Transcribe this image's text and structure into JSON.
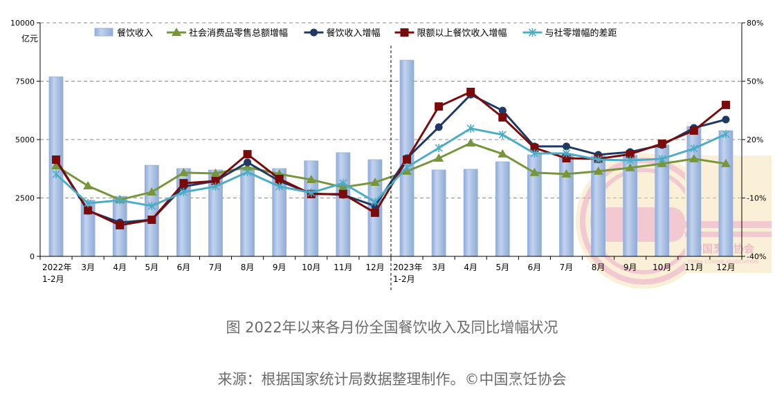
{
  "chart_data": {
    "type": "bar+line",
    "title": "图 2022年以来各月份全国餐饮收入及同比增幅状况",
    "source": "来源：根据国家统计局数据整理制作。©中国烹饪协会",
    "ylabel_left": "亿元",
    "ylim_left": [
      0,
      10000
    ],
    "yticks_left": [
      "0",
      "2500",
      "5000",
      "7500",
      "10000"
    ],
    "ylim_right": [
      -40,
      80
    ],
    "yticks_right": [
      "-40%",
      "-10%",
      "20%",
      "50%",
      "80%"
    ],
    "grid": true,
    "legend_position": "top",
    "categories": [
      "2022年\n1-2月",
      "3月",
      "4月",
      "5月",
      "6月",
      "7月",
      "8月",
      "9月",
      "10月",
      "11月",
      "12月",
      "2023年\n1-2月",
      "3月",
      "4月",
      "5月",
      "6月",
      "7月",
      "8月",
      "9月",
      "10月",
      "11月",
      "12月"
    ],
    "category_lines": [
      [
        "2022年",
        "1-2月"
      ],
      [
        "3月"
      ],
      [
        "4月"
      ],
      [
        "5月"
      ],
      [
        "6月"
      ],
      [
        "7月"
      ],
      [
        "8月"
      ],
      [
        "9月"
      ],
      [
        "10月"
      ],
      [
        "11月"
      ],
      [
        "12月"
      ],
      [
        "2023年",
        "1-2月"
      ],
      [
        "3月"
      ],
      [
        "4月"
      ],
      [
        "5月"
      ],
      [
        "6月"
      ],
      [
        "7月"
      ],
      [
        "8月"
      ],
      [
        "9月"
      ],
      [
        "10月"
      ],
      [
        "11月"
      ],
      [
        "12月"
      ]
    ],
    "divider_after_index": 10,
    "series": [
      {
        "name": "餐饮收入",
        "type": "bar",
        "axis": "left",
        "color": "#9db7e0",
        "values": [
          7690,
          2400,
          2570,
          3900,
          3760,
          3700,
          3730,
          3760,
          4090,
          4440,
          4140,
          8400,
          3700,
          3730,
          4050,
          4350,
          4320,
          4300,
          4330,
          4770,
          5560,
          5380
        ]
      },
      {
        "name": "社会消费品零售总额增幅",
        "type": "line",
        "axis": "right",
        "color": "#77953a",
        "marker": "triangle",
        "values": [
          6.5,
          -3.8,
          -10.9,
          -7.0,
          3.0,
          2.6,
          5.8,
          2.3,
          -0.6,
          -4.5,
          -2.0,
          3.7,
          10.4,
          18.2,
          12.6,
          3.0,
          2.3,
          3.7,
          5.5,
          7.6,
          10.1,
          7.6
        ]
      },
      {
        "name": "餐饮收入增幅",
        "type": "line",
        "axis": "right",
        "color": "#1f3864",
        "marker": "circle",
        "values": [
          9.3,
          -16.6,
          -22.6,
          -21.2,
          -4.1,
          -1.3,
          8.3,
          -1.3,
          -7.7,
          -8.4,
          -14.1,
          10.4,
          26.4,
          43.1,
          34.9,
          16.5,
          16.5,
          12.2,
          13.6,
          17.2,
          26.0,
          30.3
        ]
      },
      {
        "name": "限额以上餐饮收入增幅",
        "type": "line",
        "axis": "right",
        "color": "#7b0a0a",
        "marker": "square",
        "values": [
          9.7,
          -16.3,
          -24.0,
          -21.2,
          -2.4,
          -1.3,
          12.5,
          -0.2,
          -8.0,
          -8.0,
          -17.6,
          9.7,
          37.0,
          44.5,
          31.4,
          15.7,
          10.4,
          10.1,
          12.5,
          17.9,
          24.6,
          37.8
        ]
      },
      {
        "name": "与社零增幅的差距",
        "type": "line",
        "axis": "right",
        "color": "#4bacc6",
        "marker": "asterisk",
        "values": [
          2.2,
          -12.7,
          -11.2,
          -14.1,
          -7.0,
          -4.1,
          3.3,
          -4.1,
          -7.3,
          -2.4,
          -12.0,
          5.8,
          15.7,
          25.7,
          22.5,
          12.9,
          12.9,
          9.7,
          9.3,
          10.1,
          15.4,
          22.8
        ]
      }
    ],
    "watermark": {
      "text_cn": "中国烹饪协会",
      "text_en": "CHINA CUISINE ASSOCIATION"
    }
  }
}
